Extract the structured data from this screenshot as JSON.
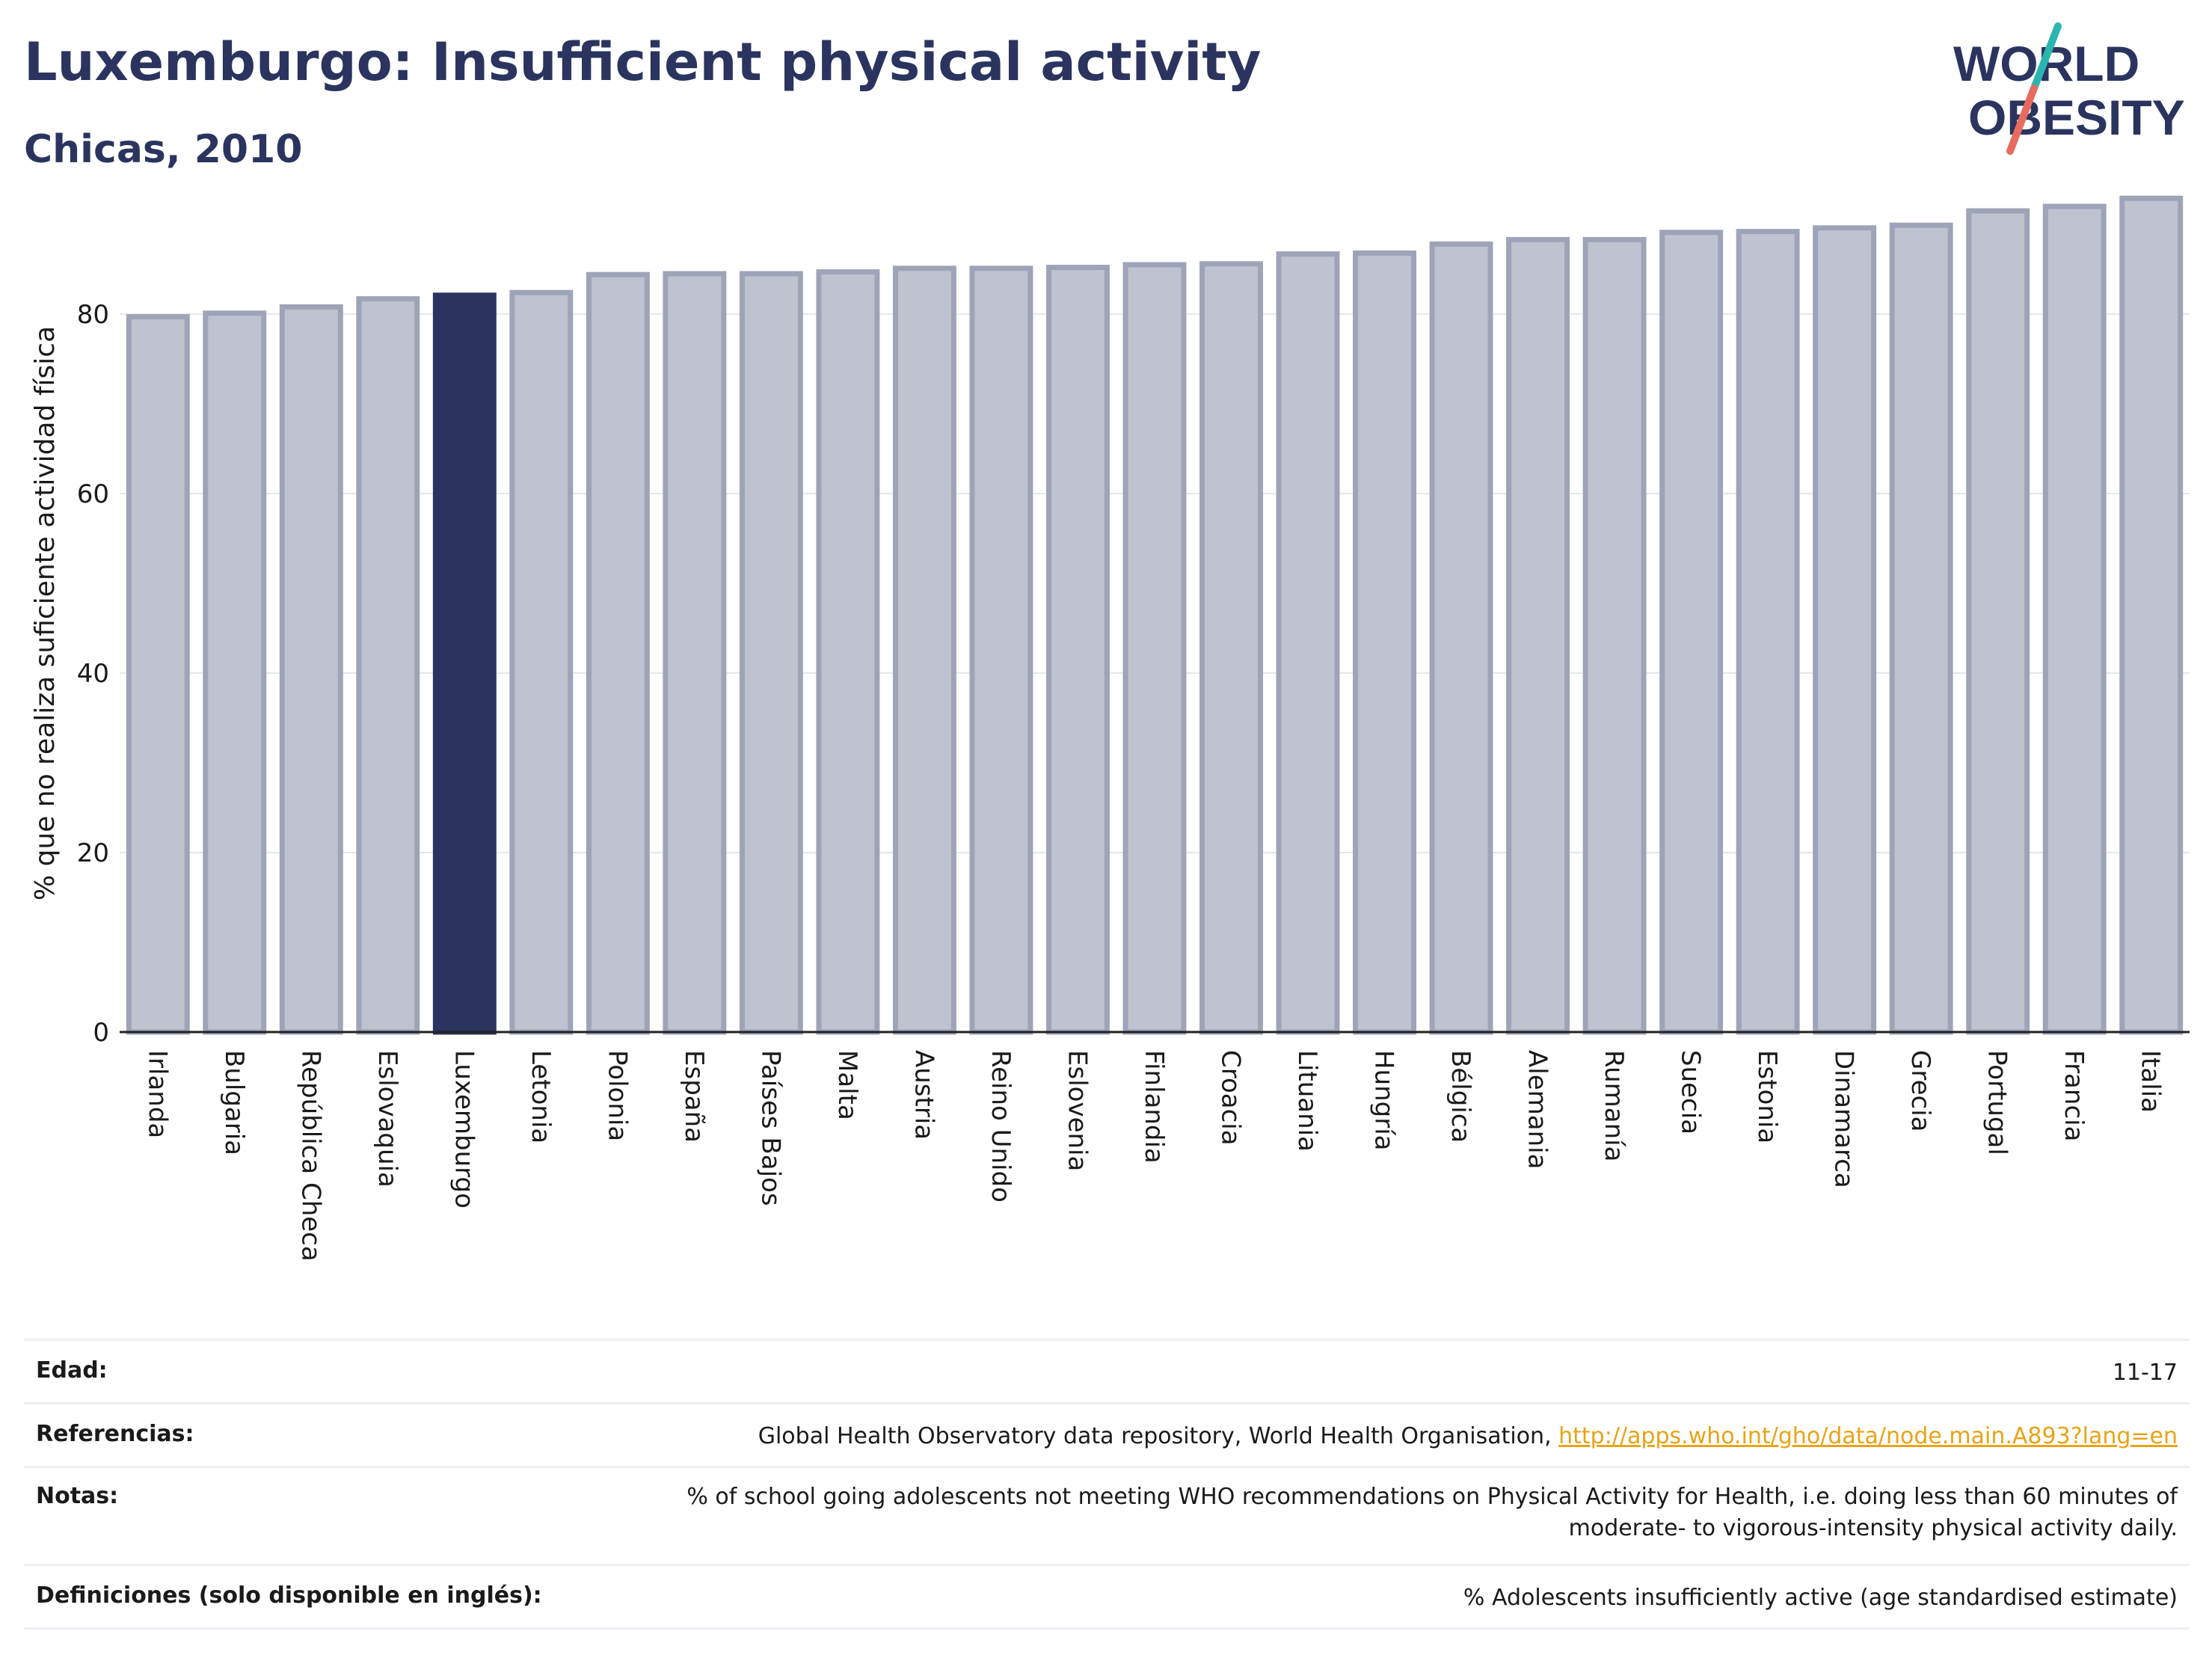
{
  "header": {
    "title": "Luxemburgo: Insufficient physical activity",
    "subtitle": "Chicas, 2010"
  },
  "logo": {
    "line1": "WORLD",
    "line2": "OBESITY"
  },
  "colors": {
    "highlight": "#2a345f",
    "bar_fill": "#bfc2cf",
    "bar_stroke": "#9ea3b8",
    "teal": "#2bb5b0",
    "coral": "#e86b5f"
  },
  "chart_data": {
    "type": "bar",
    "ylabel": "% que no realiza suficiente actividad física",
    "ylim": [
      0,
      95
    ],
    "yticks": [
      0,
      20,
      40,
      60,
      80
    ],
    "grid": true,
    "highlight": "Luxemburgo",
    "categories": [
      "Irlanda",
      "Bulgaria",
      "República Checa",
      "Eslovaquia",
      "Luxemburgo",
      "Letonia",
      "Polonia",
      "España",
      "Países Bajos",
      "Malta",
      "Austria",
      "Reino Unido",
      "Eslovenia",
      "Finlandia",
      "Croacia",
      "Lituania",
      "Hungría",
      "Bélgica",
      "Alemania",
      "Rumanía",
      "Suecia",
      "Estonia",
      "Dinamarca",
      "Grecia",
      "Portugal",
      "Francia",
      "Italia"
    ],
    "values": [
      79.7,
      80.1,
      80.8,
      81.7,
      82.1,
      82.4,
      84.4,
      84.5,
      84.5,
      84.7,
      85.1,
      85.1,
      85.2,
      85.5,
      85.6,
      86.7,
      86.8,
      87.8,
      88.3,
      88.3,
      89.1,
      89.2,
      89.6,
      89.9,
      91.5,
      92.0,
      92.9
    ]
  },
  "meta": {
    "edad_label": "Edad:",
    "edad_value": "11-17",
    "ref_label": "Referencias:",
    "ref_text": "Global Health Observatory data repository, World Health Organisation, ",
    "ref_link": "http://apps.who.int/gho/data/node.main.A893?lang=en",
    "notas_label": "Notas:",
    "notas_value": "% of school going adolescents not meeting WHO recommendations on Physical Activity for Health, i.e. doing less than 60 minutes of moderate- to vigorous-intensity physical activity daily.",
    "def_label": "Definiciones (solo disponible en inglés):",
    "def_value": "% Adolescents insufficiently active (age standardised estimate)"
  }
}
